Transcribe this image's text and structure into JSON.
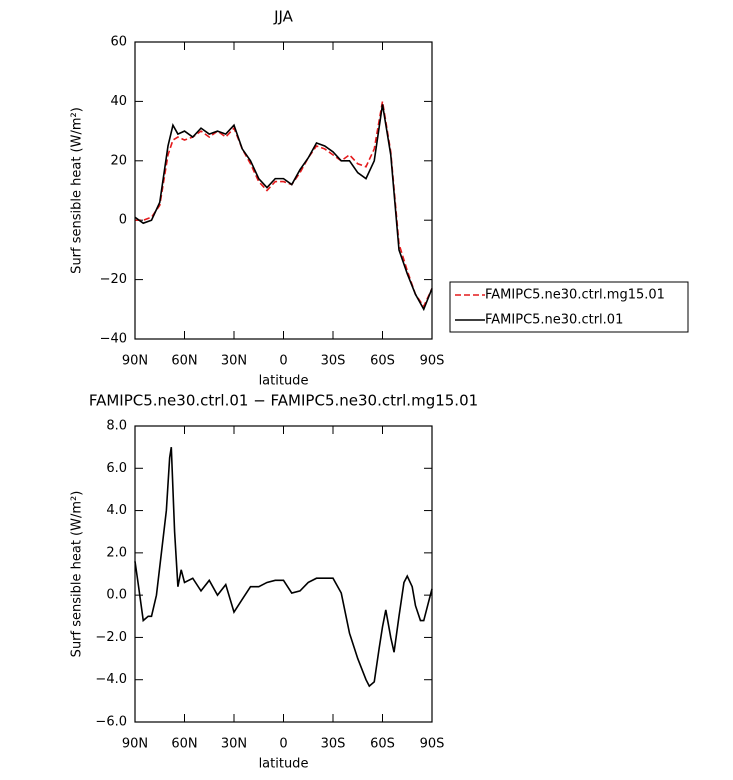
{
  "chart_data": [
    {
      "type": "line",
      "title": "JJA",
      "xlabel": "latitude",
      "ylabel": "Surf sensible heat (W/m²)",
      "xlim": [
        90,
        -90
      ],
      "ylim": [
        -40,
        60
      ],
      "xticks": [
        {
          "value": 90,
          "label": "90N"
        },
        {
          "value": 60,
          "label": "60N"
        },
        {
          "value": 30,
          "label": "30N"
        },
        0,
        {
          "value": -30,
          "label": "30S"
        },
        {
          "value": -60,
          "label": "60S"
        },
        {
          "value": -90,
          "label": "90S"
        }
      ],
      "yticks": [
        {
          "value": -40,
          "label": "−40"
        },
        {
          "value": -20,
          "label": "−20"
        },
        0,
        20,
        40,
        60
      ],
      "legend": "right",
      "x": [
        90,
        85,
        80,
        75,
        70,
        67,
        64,
        60,
        55,
        50,
        45,
        40,
        35,
        30,
        25,
        20,
        15,
        10,
        5,
        0,
        -5,
        -10,
        -15,
        -20,
        -25,
        -30,
        -35,
        -40,
        -45,
        -50,
        -55,
        -60,
        -65,
        -70,
        -75,
        -80,
        -85,
        -90
      ],
      "series": [
        {
          "name": "FAMIPC5.ne30.ctrl.mg15.01",
          "color": "#e41a1c",
          "dash": true,
          "values": [
            0,
            0,
            1,
            5,
            22,
            27,
            28,
            27,
            28,
            30,
            28,
            30,
            28,
            31,
            24,
            19,
            13,
            10,
            13,
            13,
            12,
            16,
            21,
            25,
            24,
            22,
            20,
            22,
            19,
            18,
            24,
            40,
            23,
            -8,
            -17,
            -25,
            -29,
            -23
          ]
        },
        {
          "name": "FAMIPC5.ne30.ctrl.01",
          "color": "#000000",
          "dash": false,
          "values": [
            1,
            -1,
            0,
            6,
            25,
            32,
            29,
            30,
            28,
            31,
            29,
            30,
            29,
            32,
            24,
            20,
            14,
            11,
            14,
            14,
            12,
            17,
            21,
            26,
            25,
            23,
            20,
            20,
            16,
            14,
            20,
            39,
            22,
            -10,
            -18,
            -25,
            -30,
            -23
          ]
        }
      ]
    },
    {
      "type": "line",
      "title": "FAMIPC5.ne30.ctrl.01 − FAMIPC5.ne30.ctrl.mg15.01",
      "xlabel": "latitude",
      "ylabel": "Surf sensible heat (W/m²)",
      "xlim": [
        90,
        -90
      ],
      "ylim": [
        -6,
        8
      ],
      "xticks": [
        {
          "value": 90,
          "label": "90N"
        },
        {
          "value": 60,
          "label": "60N"
        },
        {
          "value": 30,
          "label": "30N"
        },
        0,
        {
          "value": -30,
          "label": "30S"
        },
        {
          "value": -60,
          "label": "60S"
        },
        {
          "value": -90,
          "label": "90S"
        }
      ],
      "yticks": [
        {
          "value": -6,
          "label": "−6.0"
        },
        {
          "value": -4,
          "label": "−4.0"
        },
        {
          "value": -2,
          "label": "−2.0"
        },
        {
          "value": 0,
          "label": "0.0"
        },
        {
          "value": 2,
          "label": "2.0"
        },
        {
          "value": 4,
          "label": "4.0"
        },
        {
          "value": 6,
          "label": "6.0"
        },
        {
          "value": 8,
          "label": "8.0"
        }
      ],
      "x": [
        90,
        88,
        85,
        82,
        80,
        77,
        74,
        71,
        69,
        68,
        66,
        64,
        62,
        60,
        55,
        50,
        45,
        40,
        35,
        30,
        25,
        20,
        15,
        10,
        5,
        0,
        -5,
        -10,
        -15,
        -20,
        -25,
        -30,
        -35,
        -40,
        -45,
        -50,
        -52,
        -55,
        -58,
        -60,
        -62,
        -65,
        -67,
        -70,
        -73,
        -75,
        -78,
        -80,
        -83,
        -85,
        -88,
        -90
      ],
      "series": [
        {
          "name": "difference",
          "color": "#000000",
          "values": [
            1.6,
            0.5,
            -1.2,
            -1.0,
            -1.0,
            0.0,
            2.0,
            4.0,
            6.5,
            7.0,
            3.0,
            0.4,
            1.2,
            0.6,
            0.8,
            0.2,
            0.7,
            0.0,
            0.5,
            -0.8,
            -0.2,
            0.4,
            0.4,
            0.6,
            0.7,
            0.7,
            0.1,
            0.2,
            0.6,
            0.8,
            0.8,
            0.8,
            0.1,
            -1.8,
            -3.0,
            -4.0,
            -4.3,
            -4.1,
            -2.5,
            -1.5,
            -0.7,
            -2.0,
            -2.7,
            -1.0,
            0.6,
            0.9,
            0.4,
            -0.5,
            -1.2,
            -1.2,
            -0.3,
            0.3
          ]
        }
      ]
    }
  ]
}
